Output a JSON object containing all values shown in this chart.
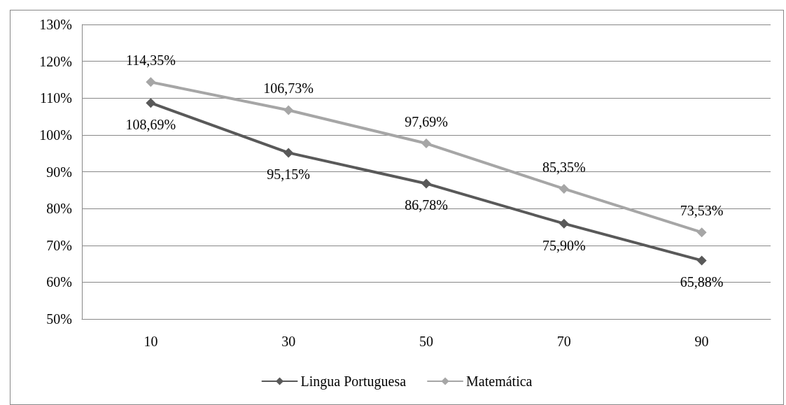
{
  "chart_data": {
    "type": "line",
    "categories": [
      "10",
      "30",
      "50",
      "70",
      "90"
    ],
    "series": [
      {
        "name": "Lingua Portuguesa",
        "color": "#595959",
        "values": [
          108.69,
          95.15,
          86.78,
          75.9,
          65.88
        ],
        "value_labels": [
          "108,69%",
          "95,15%",
          "86,78%",
          "75,90%",
          "65,88%"
        ]
      },
      {
        "name": "Matemática",
        "color": "#a6a6a6",
        "values": [
          114.35,
          106.73,
          97.69,
          85.35,
          73.53
        ],
        "value_labels": [
          "114,35%",
          "106,73%",
          "97,69%",
          "85,35%",
          "73,53%"
        ]
      }
    ],
    "ylim": [
      50,
      130
    ],
    "yticks": [
      {
        "value": 50,
        "label": "50%"
      },
      {
        "value": 60,
        "label": "60%"
      },
      {
        "value": 70,
        "label": "70%"
      },
      {
        "value": 80,
        "label": "80%"
      },
      {
        "value": 90,
        "label": "90%"
      },
      {
        "value": 100,
        "label": "100%"
      },
      {
        "value": 110,
        "label": "110%"
      },
      {
        "value": 120,
        "label": "120%"
      },
      {
        "value": 130,
        "label": "130%"
      }
    ],
    "grid": "y",
    "legend": "bottom",
    "marker": "diamond",
    "line_style": "solid"
  }
}
